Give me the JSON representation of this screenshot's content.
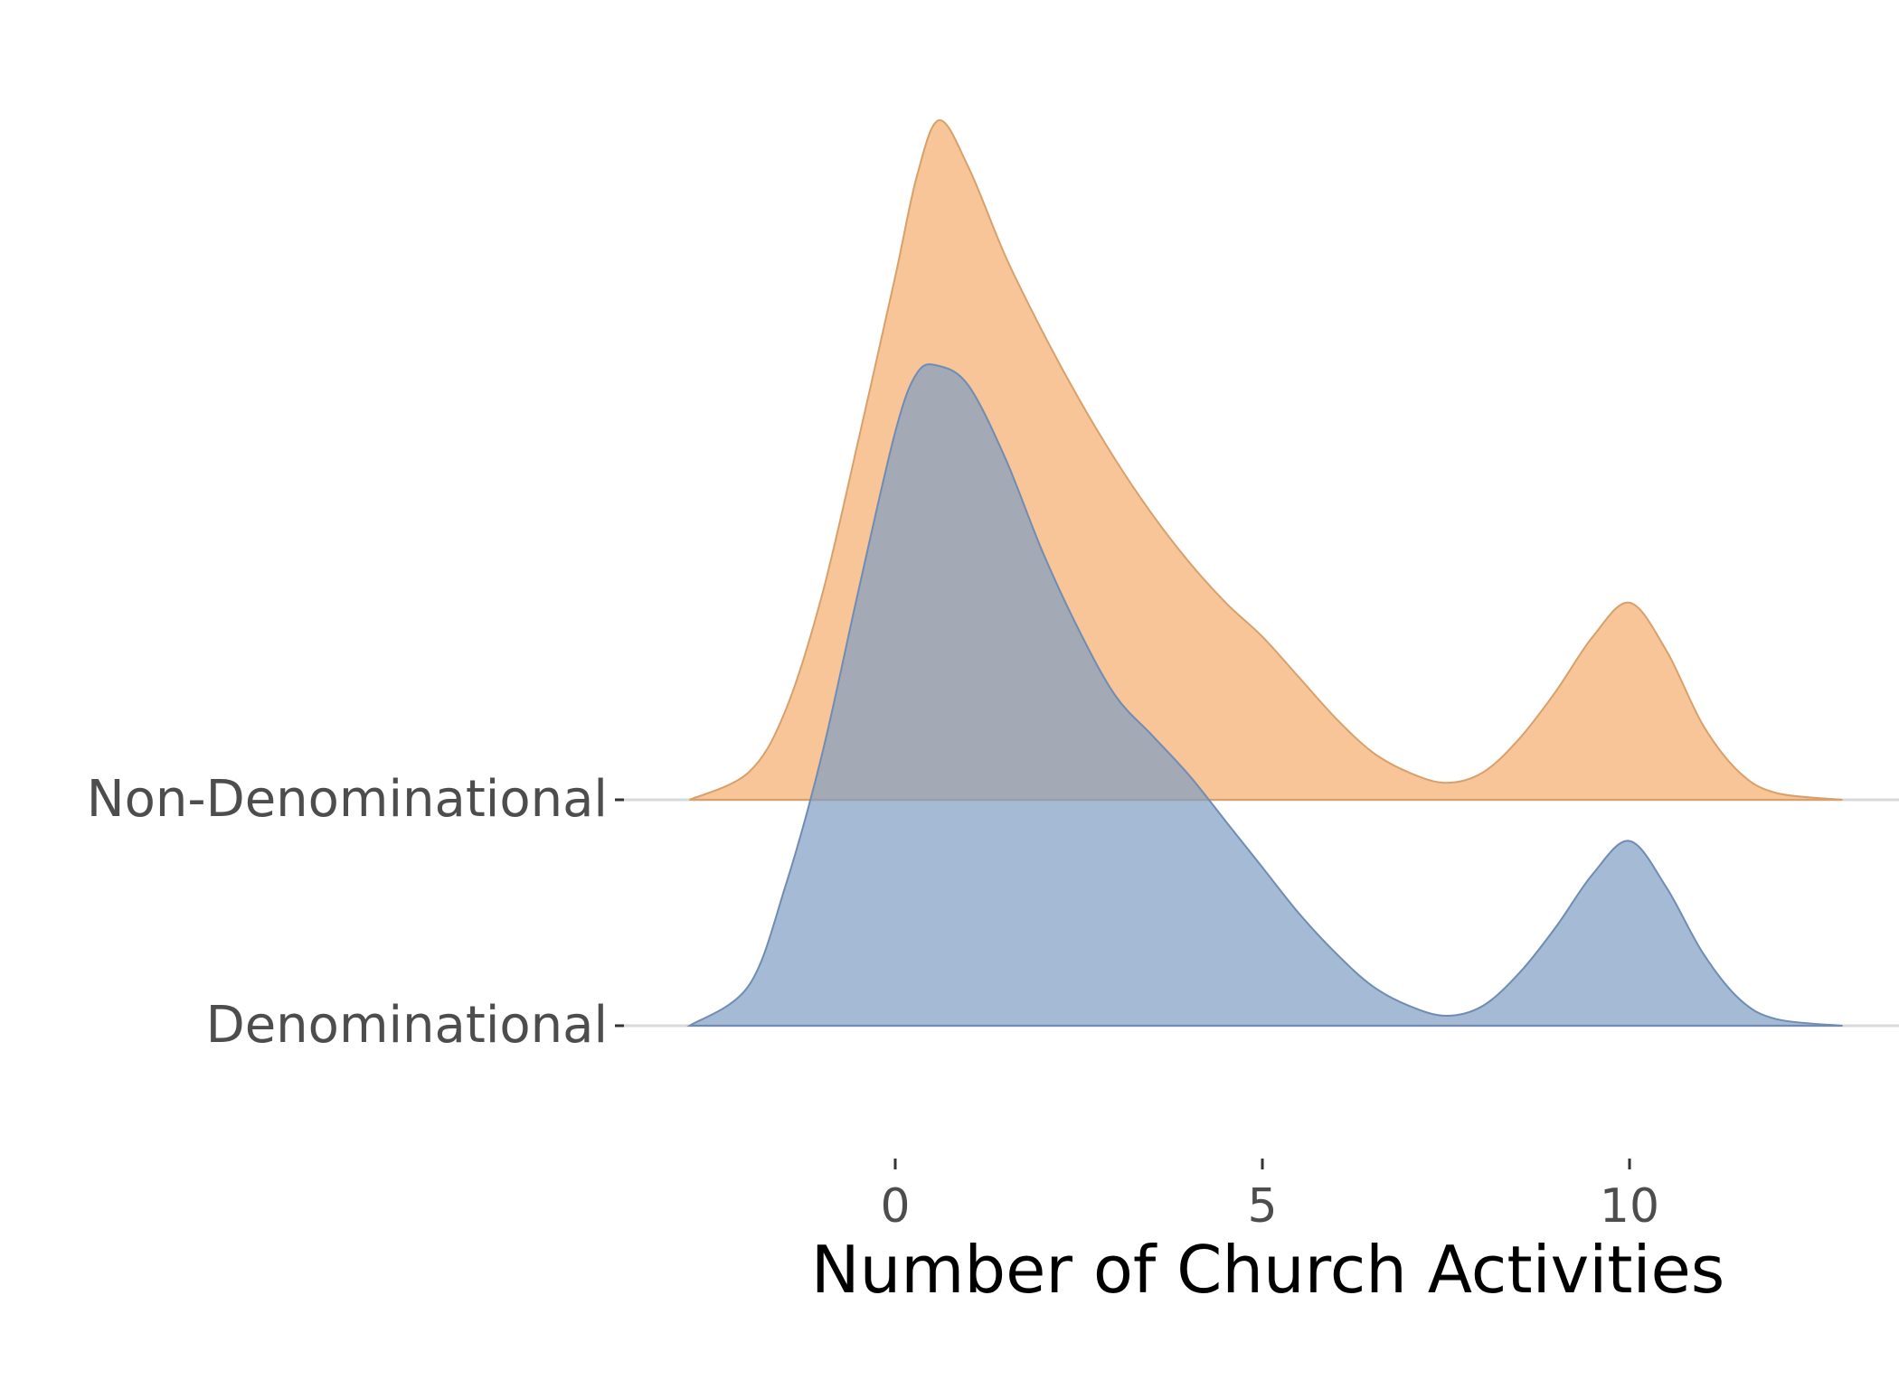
{
  "chart_data": {
    "type": "ridgeline",
    "xlabel": "Number of Church Activities",
    "xlim": [
      -3,
      13
    ],
    "x_ticks": [
      0,
      5,
      10
    ],
    "grid": "horizontal baselines only",
    "legend": "none",
    "series": [
      {
        "name": "Non-Denominational",
        "color": "#F5B57A",
        "stroke": "#D9A06A",
        "points": [
          [
            -2.8,
            0.0
          ],
          [
            -2.0,
            0.04
          ],
          [
            -1.5,
            0.13
          ],
          [
            -1.0,
            0.3
          ],
          [
            -0.5,
            0.53
          ],
          [
            0.0,
            0.77
          ],
          [
            0.3,
            0.92
          ],
          [
            0.6,
            1.0
          ],
          [
            1.0,
            0.93
          ],
          [
            1.5,
            0.8
          ],
          [
            2.0,
            0.69
          ],
          [
            2.5,
            0.59
          ],
          [
            3.0,
            0.5
          ],
          [
            3.5,
            0.42
          ],
          [
            4.0,
            0.35
          ],
          [
            4.5,
            0.29
          ],
          [
            5.0,
            0.24
          ],
          [
            5.5,
            0.18
          ],
          [
            6.0,
            0.12
          ],
          [
            6.5,
            0.07
          ],
          [
            7.0,
            0.04
          ],
          [
            7.5,
            0.025
          ],
          [
            8.0,
            0.04
          ],
          [
            8.5,
            0.09
          ],
          [
            9.0,
            0.16
          ],
          [
            9.5,
            0.24
          ],
          [
            10.0,
            0.29
          ],
          [
            10.5,
            0.22
          ],
          [
            11.0,
            0.11
          ],
          [
            11.5,
            0.04
          ],
          [
            12.0,
            0.01
          ],
          [
            12.9,
            0.0
          ]
        ]
      },
      {
        "name": "Denominational",
        "color": "#7F9DC2",
        "stroke": "#6F8CB5",
        "points": [
          [
            -2.8,
            0.0
          ],
          [
            -2.0,
            0.06
          ],
          [
            -1.5,
            0.21
          ],
          [
            -1.0,
            0.41
          ],
          [
            -0.5,
            0.66
          ],
          [
            0.0,
            0.9
          ],
          [
            0.3,
            0.99
          ],
          [
            0.6,
            1.0
          ],
          [
            1.0,
            0.97
          ],
          [
            1.5,
            0.86
          ],
          [
            2.0,
            0.72
          ],
          [
            2.5,
            0.6
          ],
          [
            3.0,
            0.5
          ],
          [
            3.5,
            0.44
          ],
          [
            4.0,
            0.38
          ],
          [
            4.5,
            0.31
          ],
          [
            5.0,
            0.24
          ],
          [
            5.5,
            0.17
          ],
          [
            6.0,
            0.11
          ],
          [
            6.5,
            0.06
          ],
          [
            7.0,
            0.03
          ],
          [
            7.5,
            0.015
          ],
          [
            8.0,
            0.03
          ],
          [
            8.5,
            0.08
          ],
          [
            9.0,
            0.15
          ],
          [
            9.5,
            0.23
          ],
          [
            10.0,
            0.28
          ],
          [
            10.5,
            0.21
          ],
          [
            11.0,
            0.11
          ],
          [
            11.5,
            0.04
          ],
          [
            12.0,
            0.01
          ],
          [
            12.9,
            0.0
          ]
        ]
      }
    ]
  }
}
